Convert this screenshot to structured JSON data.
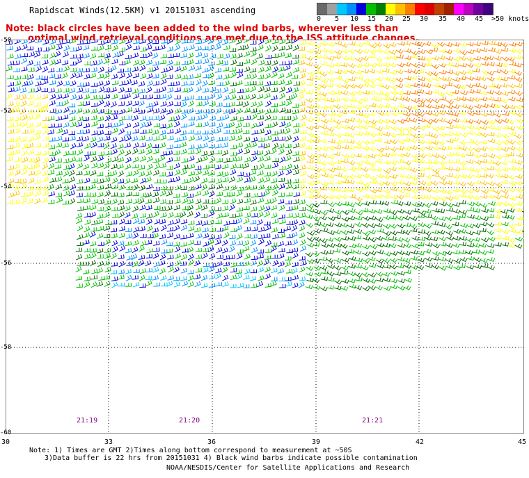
{
  "header": {
    "title": "Rapidscat Winds(12.5KM) v1 20151031 ascending"
  },
  "notice": {
    "line1": "Note: black circles have been added to the wind barbs, wherever less than",
    "line2": "optimal wind retrieval conditions are met due to the ISS attitude changes."
  },
  "legend": {
    "units_label": ">50 knots",
    "labels": [
      "0",
      "5",
      "10",
      "15",
      "20",
      "25",
      "30",
      "35",
      "40",
      "45"
    ],
    "colors": [
      "#6a6a6a",
      "#a0a0a0",
      "#00c8ff",
      "#0090ff",
      "#0000e0",
      "#00c000",
      "#008000",
      "#ffff00",
      "#ffc000",
      "#ff8000",
      "#ff0000",
      "#e00000",
      "#c04000",
      "#a02000",
      "#ff00ff",
      "#c000c0",
      "#7000a0",
      "#400080"
    ]
  },
  "map": {
    "lat_labels": [
      "-50",
      "-52",
      "-54",
      "-56",
      "-58",
      "-60"
    ],
    "lon_labels": [
      "30",
      "33",
      "36",
      "39",
      "42",
      "45"
    ],
    "time_labels": [
      "21:19",
      "21:20",
      "21:21"
    ],
    "barb_colors": {
      "light_blue": "#00c8ff",
      "blue": "#0000e0",
      "mid_blue": "#0090ff",
      "green": "#00c000",
      "dark_green": "#006400",
      "yellow": "#ffff00",
      "orange": "#ffc000",
      "dark_orange": "#ff8000"
    }
  },
  "footer": {
    "note1": "Note: 1) Times are GMT 2)Times along bottom correspond to measurement at ~50S",
    "note2": "3)Data buffer is 22 hrs from 20151031 4) Black wind barbs indicate possible contamination",
    "credit": "NOAA/NESDIS/Center for Satellite Applications and Research"
  }
}
